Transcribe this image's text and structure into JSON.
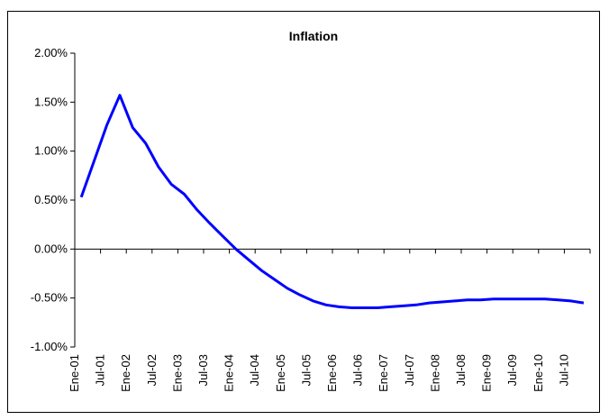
{
  "chart_data": {
    "type": "line",
    "title": "Inflation",
    "xlabel": "",
    "ylabel": "",
    "ylim": [
      -0.01,
      0.02
    ],
    "y_ticks": [
      {
        "value": 0.02,
        "label": "2.00%"
      },
      {
        "value": 0.015,
        "label": "1.50%"
      },
      {
        "value": 0.01,
        "label": "1.00%"
      },
      {
        "value": 0.005,
        "label": "0.50%"
      },
      {
        "value": 0.0,
        "label": "0.00%"
      },
      {
        "value": -0.005,
        "label": "-0.50%"
      },
      {
        "value": -0.01,
        "label": "-1.00%"
      }
    ],
    "x_tick_labels": [
      "Ene-01",
      "Jul-01",
      "Ene-02",
      "Jul-02",
      "Ene-03",
      "Jul-03",
      "Ene-04",
      "Jul-04",
      "Ene-05",
      "Jul-05",
      "Ene-06",
      "Jul-06",
      "Ene-07",
      "Jul-07",
      "Ene-08",
      "Jul-08",
      "Ene-09",
      "Jul-09",
      "Ene-10",
      "Jul-10"
    ],
    "grid": false,
    "line_color": "#0000ff",
    "series": [
      {
        "name": "",
        "x": [
          "Ene-01",
          "Abr-01",
          "Jul-01",
          "Oct-01",
          "Ene-02",
          "Abr-02",
          "Jul-02",
          "Oct-02",
          "Ene-03",
          "Abr-03",
          "Jul-03",
          "Oct-03",
          "Ene-04",
          "Abr-04",
          "Jul-04",
          "Oct-04",
          "Ene-05",
          "Abr-05",
          "Jul-05",
          "Oct-05",
          "Ene-06",
          "Abr-06",
          "Jul-06",
          "Oct-06",
          "Ene-07",
          "Abr-07",
          "Jul-07",
          "Oct-07",
          "Ene-08",
          "Abr-08",
          "Jul-08",
          "Oct-08",
          "Ene-09",
          "Abr-09",
          "Jul-09",
          "Oct-09",
          "Ene-10",
          "Abr-10",
          "Jul-10",
          "Oct-10"
        ],
        "values": [
          0.0053,
          0.009,
          0.0127,
          0.0157,
          0.0124,
          0.0108,
          0.0084,
          0.0066,
          0.0056,
          0.004,
          0.0026,
          0.0013,
          0.0,
          -0.0011,
          -0.0022,
          -0.0031,
          -0.004,
          -0.0047,
          -0.0053,
          -0.0057,
          -0.0059,
          -0.006,
          -0.006,
          -0.006,
          -0.0059,
          -0.0058,
          -0.0057,
          -0.0055,
          -0.0054,
          -0.0053,
          -0.0052,
          -0.0052,
          -0.0051,
          -0.0051,
          -0.0051,
          -0.0051,
          -0.0051,
          -0.0052,
          -0.0053,
          -0.0055
        ]
      }
    ]
  }
}
